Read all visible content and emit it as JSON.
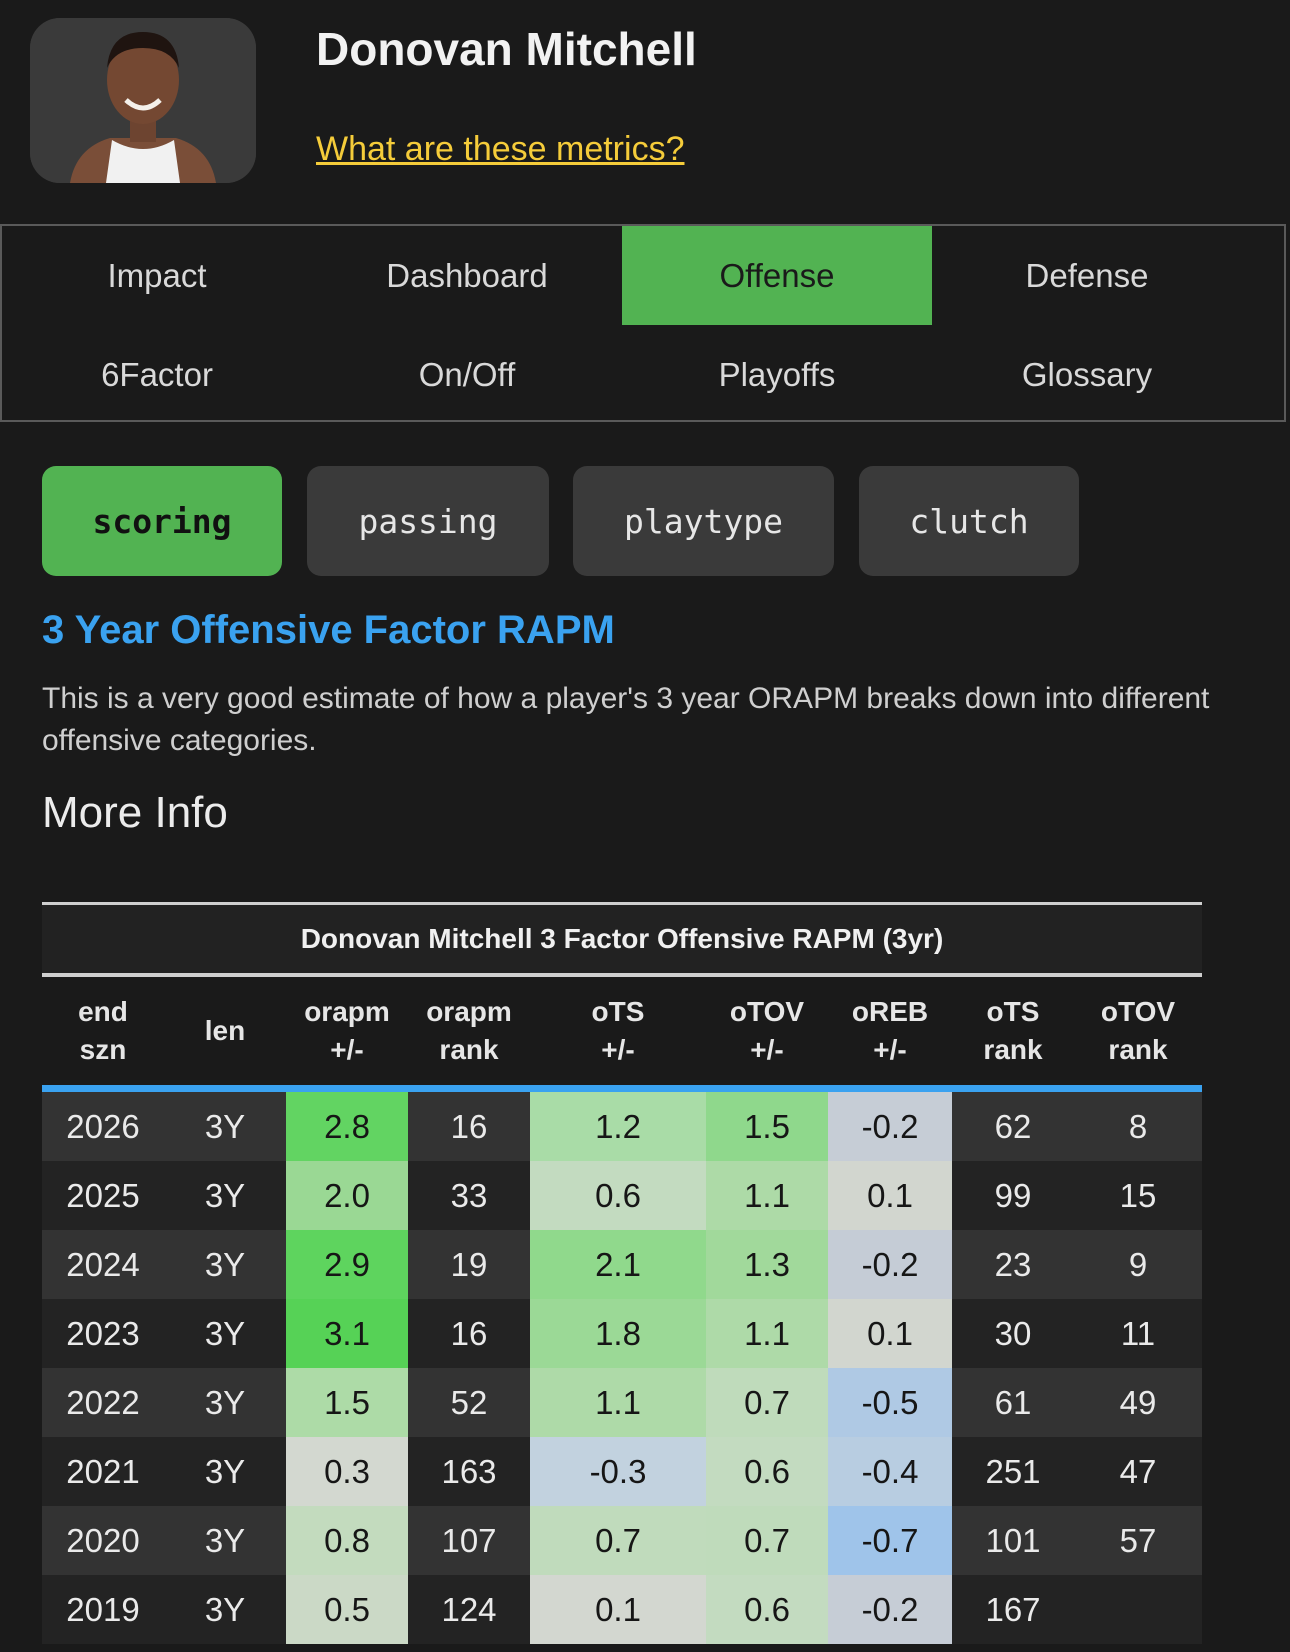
{
  "player": {
    "name": "Donovan Mitchell",
    "metrics_link": "What are these metrics?"
  },
  "nav": {
    "items": [
      {
        "label": "Impact",
        "active": false
      },
      {
        "label": "Dashboard",
        "active": false
      },
      {
        "label": "Offense",
        "active": true
      },
      {
        "label": "Defense",
        "active": false
      },
      {
        "label": "6Factor",
        "active": false
      },
      {
        "label": "On/Off",
        "active": false
      },
      {
        "label": "Playoffs",
        "active": false
      },
      {
        "label": "Glossary",
        "active": false
      }
    ]
  },
  "subtabs": [
    {
      "label": "scoring",
      "active": true
    },
    {
      "label": "passing",
      "active": false
    },
    {
      "label": "playtype",
      "active": false
    },
    {
      "label": "clutch",
      "active": false
    }
  ],
  "section": {
    "title": "3 Year Offensive Factor RAPM",
    "description": "This is a very good estimate of how a player's 3 year ORAPM breaks down into different offensive categories.",
    "more_info": "More Info"
  },
  "table": {
    "title": "Donovan Mitchell 3 Factor Offensive RAPM (3yr)",
    "headers": [
      [
        "end",
        "szn"
      ],
      [
        "len",
        ""
      ],
      [
        "orapm",
        "+/-"
      ],
      [
        "orapm",
        "rank"
      ],
      [
        "oTS",
        "+/-"
      ],
      [
        "oTOV",
        "+/-"
      ],
      [
        "oREB",
        "+/-"
      ],
      [
        "oTS",
        "rank"
      ],
      [
        "oTOV",
        "rank"
      ]
    ],
    "rows": [
      {
        "cells": [
          "2026",
          "3Y",
          "2.8",
          "16",
          "1.2",
          "1.5",
          "-0.2",
          "62",
          "8"
        ],
        "colors": {
          "2": "#62d462",
          "4": "#a9dca7",
          "5": "#8fd88c",
          "6": "#c6cdd6"
        }
      },
      {
        "cells": [
          "2025",
          "3Y",
          "2.0",
          "33",
          "0.6",
          "1.1",
          "0.1",
          "99",
          "15"
        ],
        "colors": {
          "2": "#9ad894",
          "4": "#c3dbc0",
          "5": "#addaa7",
          "6": "#d2d6cf"
        }
      },
      {
        "cells": [
          "2024",
          "3Y",
          "2.9",
          "19",
          "2.1",
          "1.3",
          "-0.2",
          "23",
          "9"
        ],
        "colors": {
          "2": "#5ed45e",
          "4": "#90d98c",
          "5": "#a1d99b",
          "6": "#c5ccd6"
        }
      },
      {
        "cells": [
          "2023",
          "3Y",
          "3.1",
          "16",
          "1.8",
          "1.1",
          "0.1",
          "30",
          "11"
        ],
        "colors": {
          "2": "#56d256",
          "4": "#9bd996",
          "5": "#aedaa8",
          "6": "#d2d6cf"
        }
      },
      {
        "cells": [
          "2022",
          "3Y",
          "1.5",
          "52",
          "1.1",
          "0.7",
          "-0.5",
          "61",
          "49"
        ],
        "colors": {
          "2": "#addba7",
          "4": "#aedaa8",
          "5": "#bfdbbb",
          "6": "#afc9e4"
        }
      },
      {
        "cells": [
          "2021",
          "3Y",
          "0.3",
          "163",
          "-0.3",
          "0.6",
          "-0.4",
          "251",
          "47"
        ],
        "colors": {
          "2": "#d3d8d0",
          "4": "#c2d2df",
          "5": "#c3dbc0",
          "6": "#b8cde1"
        }
      },
      {
        "cells": [
          "2020",
          "3Y",
          "0.8",
          "107",
          "0.7",
          "0.7",
          "-0.7",
          "101",
          "57"
        ],
        "colors": {
          "2": "#c3dbbe",
          "4": "#c0dbbc",
          "5": "#bfdbbb",
          "6": "#9fc4ea"
        }
      },
      {
        "cells": [
          "2019",
          "3Y",
          "0.5",
          "124",
          "0.1",
          "0.6",
          "-0.2",
          "167",
          ""
        ],
        "colors": {
          "2": "#cbd9c6",
          "4": "#d3d7d0",
          "5": "#c3dbc0",
          "6": "#c6cdd6"
        }
      }
    ]
  },
  "colors": {
    "accent_green": "#52b352",
    "title_blue": "#3aa2f0",
    "link_yellow": "#f5cc3a"
  }
}
